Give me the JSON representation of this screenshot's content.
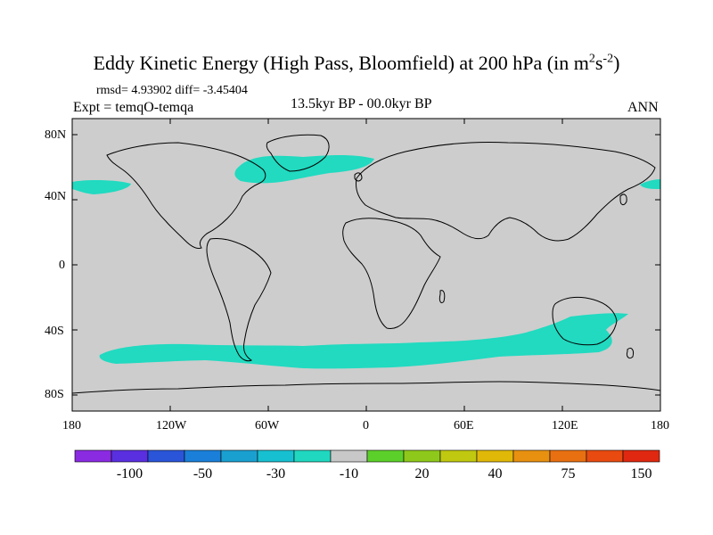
{
  "title": {
    "main": "Eddy Kinetic Energy (High Pass, Bloomfield) at 200 hPa (in m",
    "sup1": "2",
    "mid": "s",
    "sup2": "-2",
    "end": ")"
  },
  "stats": "rmsd= 4.93902 diff= -3.45404",
  "experiment": "Expt = temqO-temqa",
  "period": "13.5kyr BP - 00.0kyr BP",
  "season": "ANN",
  "lat_labels": [
    "80N",
    "40N",
    "0",
    "40S",
    "80S"
  ],
  "lon_labels": [
    "180",
    "120W",
    "60W",
    "0",
    "60E",
    "120E",
    "180"
  ],
  "colorbar": {
    "colors": [
      "#8a2be2",
      "#5a2fe0",
      "#2a55d8",
      "#1a7fd8",
      "#1aa0d0",
      "#17c0d0",
      "#20d8c0",
      "#c8c8c8",
      "#5cd02a",
      "#8ec81a",
      "#c0c810",
      "#e0b808",
      "#e89010",
      "#e87010",
      "#e84a10",
      "#e02810"
    ],
    "labels": [
      "-100",
      "-50",
      "-30",
      "-10",
      "20",
      "40",
      "75",
      "150"
    ]
  },
  "colors": {
    "land_ocean": "#cdcdcd",
    "anomaly": "#21dac0",
    "coast": "#000000"
  }
}
